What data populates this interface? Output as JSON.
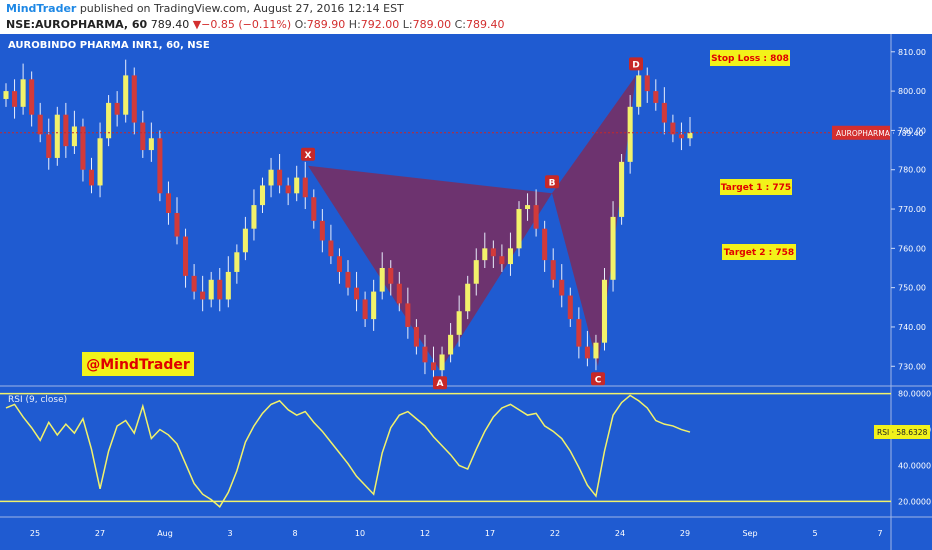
{
  "header": {
    "author": "MindTrader",
    "published_text": "published on TradingView.com, August 27, 2016 12:14 EST",
    "symbol_interval": "NSE:AUROPHARMA, 60",
    "last": "789.40",
    "change": "−0.85 (−0.11%)",
    "o_label": "O:",
    "o_value": "789.90",
    "h_label": "H:",
    "h_value": "792.00",
    "l_label": "L:",
    "l_value": "789.00",
    "c_label": "C:",
    "c_value": "789.40"
  },
  "colors": {
    "background": "#1f5bd1",
    "bull_candle": "#f2f26b",
    "bear_candle": "#d23a3a",
    "pattern_fill": "#7b2d5e",
    "rsi_line": "#f2f26b",
    "label_box": "#f2f21a",
    "label_text": "#e00000",
    "price_line": "#c62828"
  },
  "chart_data": {
    "type": "candlestick",
    "title": "AUROBINDO PHARMA INR1, 60, NSE",
    "price_axis": {
      "ticks": [
        730,
        740,
        750,
        760,
        770,
        780,
        790,
        800,
        810
      ],
      "tick_labels": [
        "730.00",
        "740.00",
        "750.00",
        "760.00",
        "770.00",
        "780.00",
        "790.00",
        "800.00",
        "810.00"
      ],
      "range": [
        726,
        813
      ]
    },
    "x_axis": {
      "tick_labels": [
        "25",
        "27",
        "Aug",
        "3",
        "8",
        "10",
        "12",
        "17",
        "22",
        "24",
        "29",
        "Sep",
        "5",
        "7"
      ]
    },
    "approx_closes": [
      800,
      796,
      803,
      794,
      789,
      783,
      794,
      786,
      791,
      780,
      776,
      788,
      797,
      794,
      804,
      792,
      785,
      788,
      774,
      769,
      763,
      753,
      749,
      747,
      752,
      747,
      754,
      759,
      765,
      771,
      776,
      780,
      776,
      774,
      778,
      773,
      767,
      762,
      758,
      754,
      750,
      747,
      742,
      749,
      755,
      751,
      746,
      740,
      735,
      731,
      729,
      733,
      738,
      744,
      751,
      757,
      760,
      758,
      756,
      760,
      770,
      771,
      765,
      757,
      752,
      748,
      742,
      735,
      732,
      736,
      752,
      768,
      782,
      796,
      804,
      800,
      797,
      792,
      789,
      788,
      789.4
    ],
    "current_price": {
      "label": "AUROPHARMA",
      "value": 789.4,
      "text": "789.40"
    },
    "pattern": {
      "type": "harmonic",
      "points": [
        {
          "label": "X",
          "price": 781
        },
        {
          "label": "A",
          "price": 729
        },
        {
          "label": "B",
          "price": 774
        },
        {
          "label": "C",
          "price": 730
        },
        {
          "label": "D",
          "price": 804
        }
      ]
    },
    "annotations": [
      {
        "text": "Stop Loss : 808"
      },
      {
        "text": "Target 1 : 775"
      },
      {
        "text": "Target 2 : 758"
      },
      {
        "text": "@MindTrader"
      }
    ],
    "rsi": {
      "title": "RSI (9, close)",
      "ticks": [
        20,
        40,
        60,
        80
      ],
      "tick_labels": [
        "20.0000",
        "40.0000",
        "60.0000",
        "80.0000"
      ],
      "range": [
        13,
        82
      ],
      "levels": [
        20,
        80
      ],
      "current": {
        "label": "RSI",
        "value": 58.6328,
        "text": "58.6328"
      },
      "values": [
        72,
        74,
        67,
        61,
        54,
        64,
        57,
        63,
        58,
        66,
        49,
        27,
        48,
        62,
        65,
        58,
        73,
        55,
        60,
        57,
        52,
        41,
        30,
        24,
        21,
        17,
        25,
        37,
        53,
        62,
        69,
        74,
        76,
        71,
        68,
        70,
        64,
        59,
        53,
        47,
        41,
        34,
        29,
        24,
        47,
        61,
        68,
        70,
        66,
        62,
        56,
        51,
        46,
        40,
        38,
        49,
        59,
        67,
        72,
        74,
        71,
        68,
        69,
        62,
        59,
        55,
        48,
        39,
        29,
        23,
        48,
        68,
        75,
        79,
        76,
        72,
        65,
        63,
        62,
        60,
        58.6
      ]
    }
  }
}
